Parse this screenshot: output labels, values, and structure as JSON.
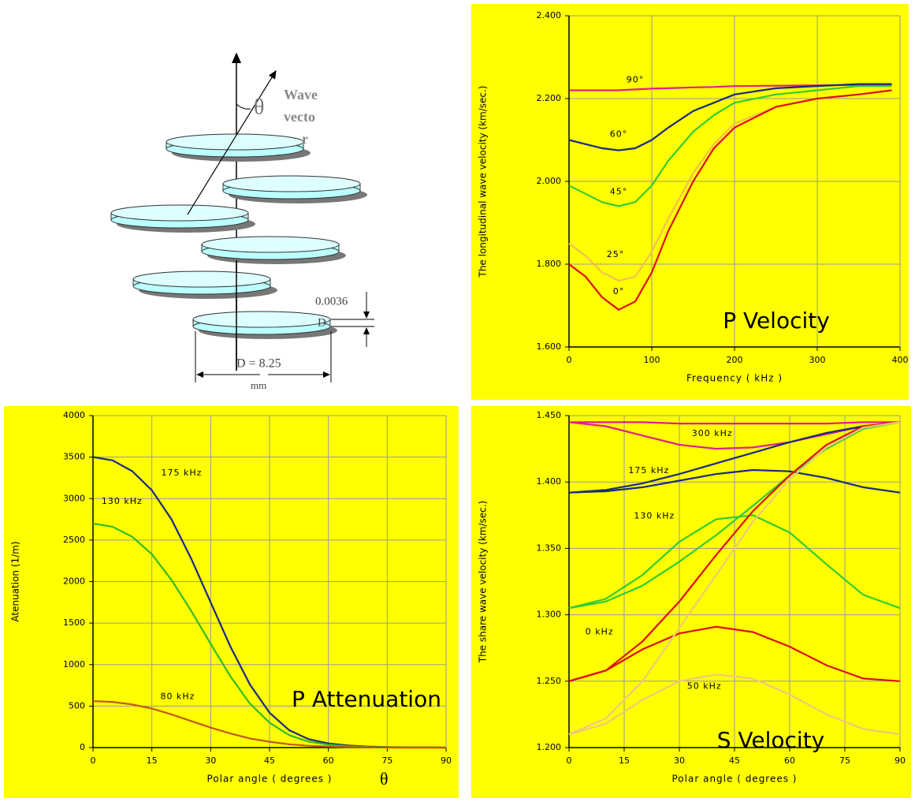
{
  "diagram": {
    "wave_label": [
      "Wave",
      "vecto",
      "r"
    ],
    "theta": "θ",
    "thickness": "0.0036",
    "d_label": "D",
    "diameter": "D = 8.25",
    "unit": "mm"
  },
  "chart_data": [
    {
      "type": "line",
      "title": "P Velocity",
      "xlabel": "Frequency  ( kHz )",
      "ylabel": "The longitudinal wave velocity   (km/sec.)",
      "x": [
        0,
        20,
        40,
        60,
        80,
        100,
        120,
        150,
        175,
        200,
        250,
        300,
        350,
        390
      ],
      "xlim": [
        0,
        400
      ],
      "xticks": [
        0,
        100,
        200,
        300,
        400
      ],
      "ylim": [
        1.6,
        2.4
      ],
      "yticks": [
        {
          "value": 1.6,
          "label": "1.600"
        },
        {
          "value": 1.8,
          "label": "1.800"
        },
        {
          "value": 2.0,
          "label": "2.000"
        },
        {
          "value": 2.2,
          "label": "2.200"
        },
        {
          "value": 2.4,
          "label": "2.400"
        }
      ],
      "grid": true,
      "series": [
        {
          "name": "90°",
          "color": "#e0208a",
          "values": [
            2.22,
            2.22,
            2.22,
            2.22,
            2.222,
            2.224,
            2.225,
            2.227,
            2.228,
            2.23,
            2.231,
            2.232,
            2.233,
            2.234
          ]
        },
        {
          "name": "60°",
          "color": "#1a2a80",
          "values": [
            2.1,
            2.09,
            2.08,
            2.075,
            2.08,
            2.1,
            2.13,
            2.17,
            2.19,
            2.21,
            2.225,
            2.23,
            2.235,
            2.235
          ]
        },
        {
          "name": "45°",
          "color": "#33cc33",
          "values": [
            1.99,
            1.97,
            1.95,
            1.94,
            1.95,
            1.99,
            2.05,
            2.12,
            2.16,
            2.19,
            2.21,
            2.22,
            2.23,
            2.23
          ]
        },
        {
          "name": "25°",
          "color": "#f0c050",
          "values": [
            1.85,
            1.82,
            1.78,
            1.76,
            1.77,
            1.83,
            1.91,
            2.02,
            2.09,
            2.14,
            2.18,
            2.2,
            2.21,
            2.22
          ]
        },
        {
          "name": "0°",
          "color": "#dd1111",
          "values": [
            1.8,
            1.77,
            1.72,
            1.69,
            1.71,
            1.78,
            1.88,
            2.0,
            2.08,
            2.13,
            2.18,
            2.2,
            2.21,
            2.22
          ]
        }
      ]
    },
    {
      "type": "line",
      "title": "P Attenuation",
      "xlabel": "Polar angle ( degrees )",
      "xlabel_symbol": "θ",
      "ylabel": "Atenuation (1/m)",
      "x": [
        0,
        5,
        10,
        15,
        20,
        25,
        30,
        35,
        40,
        45,
        50,
        55,
        60,
        65,
        70,
        75,
        80,
        85,
        90
      ],
      "xlim": [
        0,
        90
      ],
      "xticks": [
        0,
        15,
        30,
        45,
        60,
        75,
        90
      ],
      "ylim": [
        0,
        4000
      ],
      "yticks": [
        0,
        500,
        1000,
        1500,
        2000,
        2500,
        3000,
        3500,
        4000
      ],
      "grid": true,
      "series": [
        {
          "name": "175 kHz",
          "color": "#1a2a80",
          "values": [
            3500,
            3460,
            3330,
            3100,
            2750,
            2280,
            1750,
            1220,
            760,
            420,
            210,
            100,
            50,
            25,
            12,
            6,
            3,
            1,
            0
          ]
        },
        {
          "name": "130 kHz",
          "color": "#33bb22",
          "values": [
            2700,
            2660,
            2540,
            2330,
            2020,
            1650,
            1250,
            860,
            530,
            300,
            150,
            70,
            35,
            17,
            8,
            4,
            2,
            1,
            0
          ]
        },
        {
          "name": "80 kHz",
          "color": "#c05a10",
          "values": [
            560,
            550,
            520,
            470,
            400,
            320,
            240,
            170,
            110,
            70,
            40,
            22,
            12,
            6,
            3,
            1,
            0,
            0,
            0
          ]
        }
      ]
    },
    {
      "type": "line",
      "title": "S Velocity",
      "xlabel": "Polar angle   ( degrees )",
      "ylabel": "The share wave velocity    (km/sec.)",
      "x": [
        0,
        10,
        20,
        30,
        40,
        50,
        60,
        70,
        80,
        90
      ],
      "xlim": [
        0,
        90
      ],
      "xticks": [
        0,
        15,
        30,
        45,
        60,
        75,
        90
      ],
      "ylim": [
        1.2,
        1.45
      ],
      "yticks": [
        {
          "value": 1.2,
          "label": "1.200"
        },
        {
          "value": 1.25,
          "label": "1.250"
        },
        {
          "value": 1.3,
          "label": "1.300"
        },
        {
          "value": 1.35,
          "label": "1.350"
        },
        {
          "value": 1.4,
          "label": "1.400"
        },
        {
          "value": 1.45,
          "label": "1.450"
        }
      ],
      "grid": true,
      "series": [
        {
          "name": "300 kHz",
          "color": "#e0208a",
          "curves": [
            [
              1.445,
              1.445,
              1.445,
              1.444,
              1.444,
              1.444,
              1.444,
              1.444,
              1.445,
              1.445
            ],
            [
              1.445,
              1.442,
              1.435,
              1.428,
              1.425,
              1.426,
              1.43,
              1.436,
              1.442,
              1.445
            ]
          ]
        },
        {
          "name": "175 kHz",
          "color": "#1a2a80",
          "curves": [
            [
              1.392,
              1.394,
              1.399,
              1.406,
              1.414,
              1.422,
              1.43,
              1.437,
              1.442,
              1.445
            ],
            [
              1.392,
              1.393,
              1.396,
              1.401,
              1.406,
              1.409,
              1.408,
              1.403,
              1.396,
              1.392
            ]
          ]
        },
        {
          "name": "130 kHz",
          "color": "#33cc33",
          "curves": [
            [
              1.305,
              1.31,
              1.322,
              1.34,
              1.36,
              1.382,
              1.405,
              1.425,
              1.44,
              1.445
            ],
            [
              1.305,
              1.312,
              1.33,
              1.355,
              1.372,
              1.375,
              1.362,
              1.338,
              1.315,
              1.305
            ]
          ]
        },
        {
          "name": "0 kHz",
          "color": "#dd1111",
          "curves": [
            [
              1.25,
              1.258,
              1.28,
              1.31,
              1.345,
              1.378,
              1.405,
              1.428,
              1.442,
              1.445
            ],
            [
              1.25,
              1.258,
              1.274,
              1.286,
              1.291,
              1.287,
              1.276,
              1.262,
              1.252,
              1.25
            ]
          ]
        },
        {
          "name": "50 kHz",
          "color": "#f0c878",
          "curves": [
            [
              1.21,
              1.222,
              1.25,
              1.29,
              1.33,
              1.37,
              1.402,
              1.426,
              1.441,
              1.445
            ],
            [
              1.21,
              1.218,
              1.236,
              1.25,
              1.255,
              1.252,
              1.24,
              1.225,
              1.214,
              1.21
            ]
          ]
        }
      ]
    }
  ]
}
